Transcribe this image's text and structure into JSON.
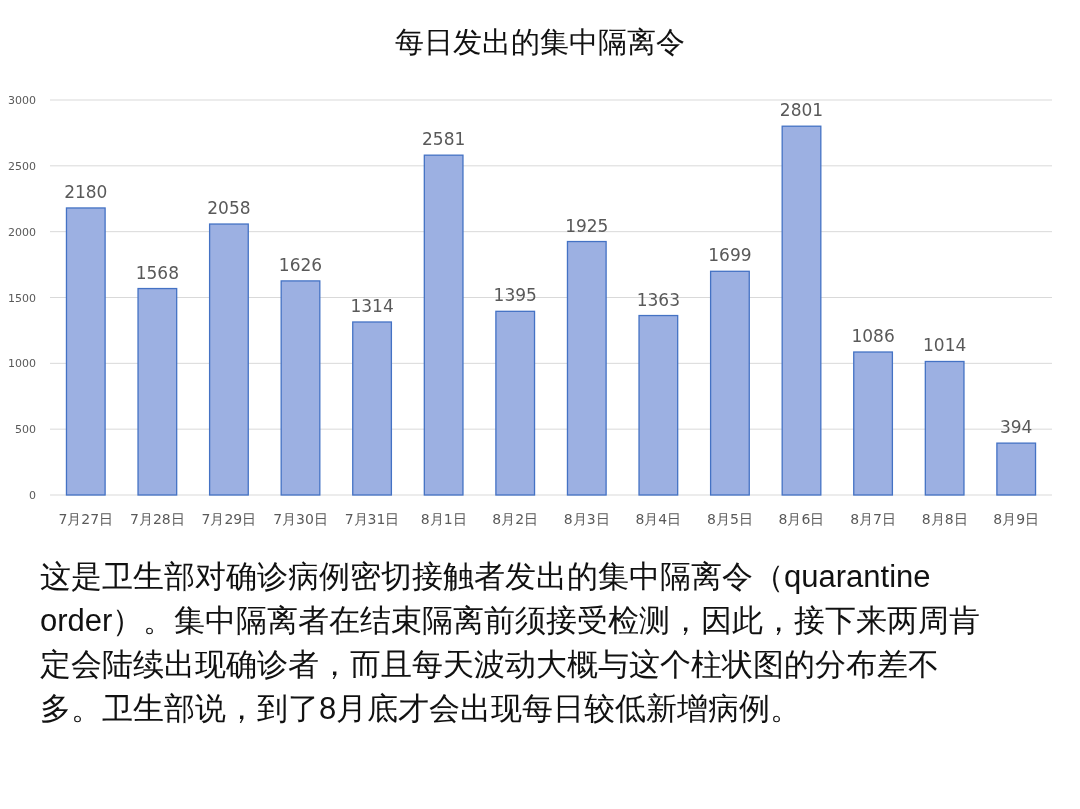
{
  "chart_data": {
    "type": "bar",
    "title": "每日发出的集中隔离令",
    "categories": [
      "7月27日",
      "7月28日",
      "7月29日",
      "7月30日",
      "7月31日",
      "8月1日",
      "8月2日",
      "8月3日",
      "8月4日",
      "8月5日",
      "8月6日",
      "8月7日",
      "8月8日",
      "8月9日"
    ],
    "values": [
      2180,
      1568,
      2058,
      1626,
      1314,
      2581,
      1395,
      1925,
      1363,
      1699,
      2801,
      1086,
      1014,
      394
    ],
    "color": "#9cb0e2",
    "ylim": [
      0,
      3000
    ],
    "yticks": [
      0,
      500,
      1000,
      1500,
      2000,
      2500,
      3000
    ],
    "grid": "y",
    "data_labels": true,
    "annotations": [
      "这是卫生部对确诊病例密切接触者发出的集中隔离令（quarantine order）。集中隔离者在结束隔离前须接受检测，因此，接下来两周肯定会陆续出现确诊者，而且每天波动大概与这个柱状图的分布差不多。卫生部说，到了8月底才会出现每日较低新增病例。"
    ]
  }
}
